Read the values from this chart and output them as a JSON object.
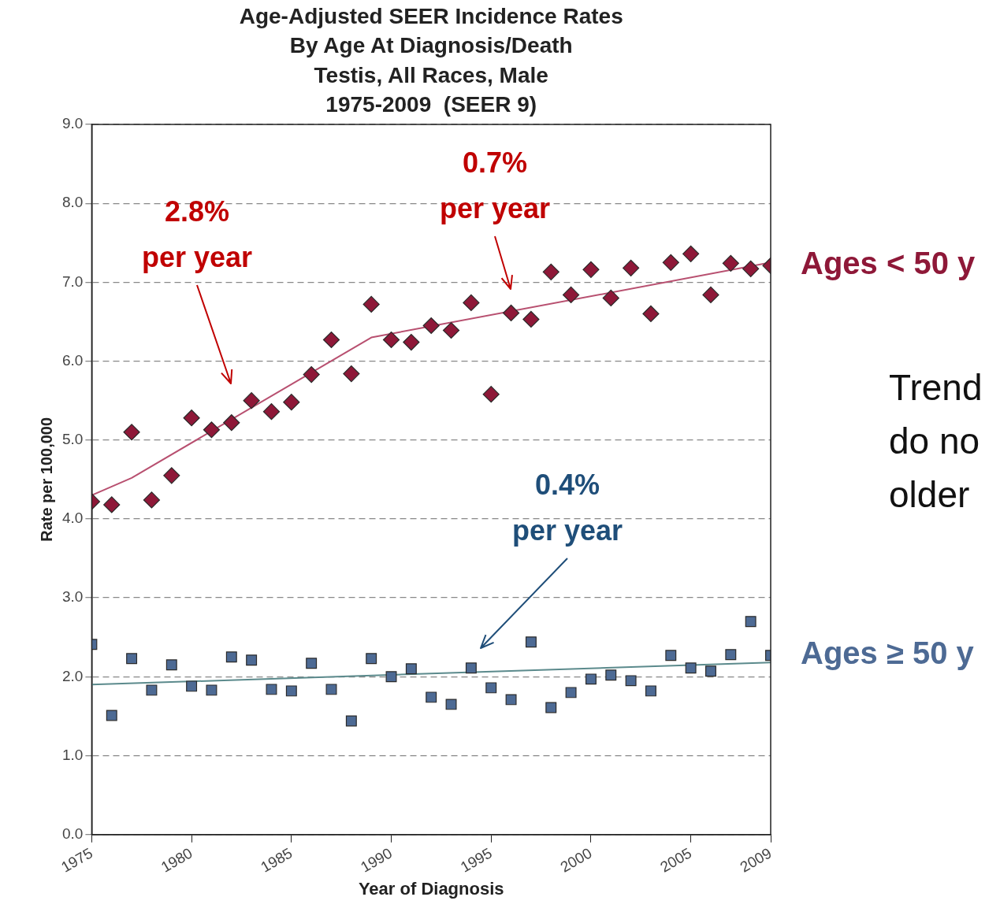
{
  "chart_data": {
    "type": "scatter",
    "title": "Age-Adjusted SEER Incidence Rates\nBy Age At Diagnosis/Death\nTestis, All Races, Male\n1975-2009  (SEER 9)",
    "xlabel": "Year of Diagnosis",
    "ylabel": "Rate per 100,000",
    "x": [
      1975,
      1976,
      1977,
      1978,
      1979,
      1980,
      1981,
      1982,
      1983,
      1984,
      1985,
      1986,
      1987,
      1988,
      1989,
      1990,
      1991,
      1992,
      1993,
      1994,
      1995,
      1996,
      1997,
      1998,
      1999,
      2000,
      2001,
      2002,
      2003,
      2004,
      2005,
      2006,
      2007,
      2008,
      2009
    ],
    "series": [
      {
        "name": "Ages < 50 y",
        "marker": "diamond",
        "color": "#8e1838",
        "values": [
          4.22,
          4.18,
          5.1,
          4.24,
          4.55,
          5.28,
          5.13,
          5.22,
          5.5,
          5.36,
          5.48,
          5.83,
          6.27,
          5.84,
          6.72,
          6.27,
          6.24,
          6.45,
          6.39,
          6.74,
          5.58,
          6.61,
          6.53,
          7.13,
          6.84,
          7.16,
          6.8,
          7.18,
          6.6,
          7.25,
          7.36,
          6.84,
          7.24,
          7.17,
          7.21
        ]
      },
      {
        "type": "line",
        "color": "#b85070",
        "x": [
          1975,
          1977,
          1989,
          2009
        ],
        "values": [
          4.3,
          4.52,
          6.3,
          7.25
        ]
      },
      {
        "name": "Ages ≥ 50 y",
        "marker": "square",
        "color": "#4d6a94",
        "values": [
          2.41,
          1.51,
          2.23,
          1.83,
          2.15,
          1.88,
          1.83,
          2.25,
          2.21,
          1.84,
          1.82,
          2.17,
          1.84,
          1.44,
          2.23,
          2.0,
          2.1,
          1.74,
          1.65,
          2.11,
          1.86,
          1.71,
          2.44,
          1.61,
          1.8,
          1.97,
          2.02,
          1.95,
          1.82,
          2.27,
          2.11,
          2.07,
          2.28,
          2.7,
          2.27
        ]
      },
      {
        "type": "line",
        "color": "#5b8a8c",
        "x": [
          1975,
          2009
        ],
        "values": [
          1.9,
          2.18
        ]
      }
    ],
    "xlim": [
      1975,
      2009
    ],
    "xticks": [
      1975,
      1980,
      1985,
      1990,
      1995,
      2000,
      2005,
      2009
    ],
    "ylim": [
      0,
      9
    ],
    "yticks": [
      {
        "value": 0,
        "label": "0.0"
      },
      {
        "value": 1,
        "label": "1.0"
      },
      {
        "value": 2,
        "label": "2.0"
      },
      {
        "value": 3,
        "label": "3.0"
      },
      {
        "value": 4,
        "label": "4.0"
      },
      {
        "value": 5,
        "label": "5.0"
      },
      {
        "value": 6,
        "label": "6.0"
      },
      {
        "value": 7,
        "label": "7.0"
      },
      {
        "value": 8,
        "label": "8.0"
      },
      {
        "value": 9,
        "label": "9.0"
      }
    ],
    "grid": "y",
    "legend": false,
    "annotations": [
      "2.8%\nper year",
      "0.7%\nper year",
      "0.4%\nper year",
      "Trend\ndo no\nolder"
    ]
  }
}
